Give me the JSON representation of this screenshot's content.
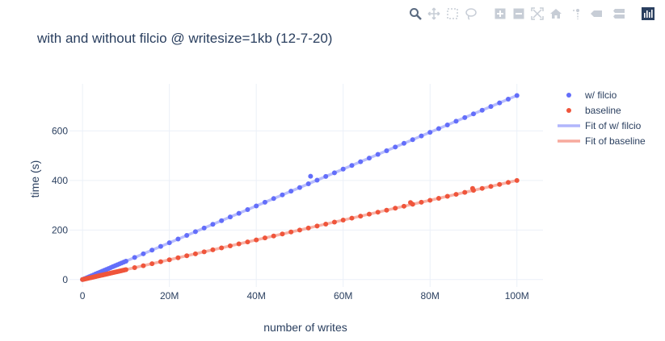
{
  "modebar": {
    "buttons": [
      {
        "name": "zoom-icon",
        "active": true
      },
      {
        "name": "pan-icon"
      },
      {
        "name": "box-select-icon"
      },
      {
        "name": "lasso-select-icon"
      },
      {
        "name": "zoom-in-icon"
      },
      {
        "name": "zoom-out-icon"
      },
      {
        "name": "autoscale-icon"
      },
      {
        "name": "reset-axes-icon"
      },
      {
        "name": "spike-lines-icon"
      },
      {
        "name": "hover-closest-icon"
      },
      {
        "name": "hover-compare-icon"
      },
      {
        "name": "plotly-logo-icon"
      }
    ]
  },
  "chart_data": {
    "type": "scatter",
    "title": "with and without filcio @ writesize=1kb (12-7-20)",
    "xlabel": "number of writes",
    "ylabel": "time (s)",
    "xlim": [
      -3000000,
      106000000
    ],
    "ylim": [
      -30,
      790
    ],
    "x_ticks": [
      {
        "value": 0,
        "label": "0"
      },
      {
        "value": 20000000,
        "label": "20M"
      },
      {
        "value": 40000000,
        "label": "40M"
      },
      {
        "value": 60000000,
        "label": "60M"
      },
      {
        "value": 80000000,
        "label": "80M"
      },
      {
        "value": 100000000,
        "label": "100M"
      }
    ],
    "y_ticks": [
      {
        "value": 0,
        "label": "0"
      },
      {
        "value": 200,
        "label": "200"
      },
      {
        "value": 400,
        "label": "400"
      },
      {
        "value": 600,
        "label": "600"
      }
    ],
    "grid": true,
    "legend_position": "top-right",
    "series": [
      {
        "name": "w/ filcio",
        "mode": "markers",
        "color": "#636efa",
        "x_start": 0,
        "x_end": 100000000,
        "x_step": 2000000,
        "dense_x_end": 10000000,
        "dense_x_step": 500000,
        "slope_per_million": 7.43,
        "intercept": 0,
        "outliers": [
          {
            "x": 52500000,
            "y": 417
          }
        ]
      },
      {
        "name": "baseline",
        "mode": "markers",
        "color": "#ef553b",
        "x_start": 0,
        "x_end": 100000000,
        "x_step": 2000000,
        "dense_x_end": 10000000,
        "dense_x_step": 250000,
        "slope_per_million": 4.0,
        "intercept": 0,
        "outliers": [
          {
            "x": 75500000,
            "y": 311
          },
          {
            "x": 89800000,
            "y": 368
          }
        ]
      },
      {
        "name": "Fit of w/ filcio",
        "mode": "line",
        "color": "#636efa",
        "x": [
          0,
          100000000
        ],
        "y": [
          0,
          743
        ]
      },
      {
        "name": "Fit of baseline",
        "mode": "line",
        "color": "#ef553b",
        "x": [
          0,
          100000000
        ],
        "y": [
          0,
          400
        ]
      }
    ]
  }
}
